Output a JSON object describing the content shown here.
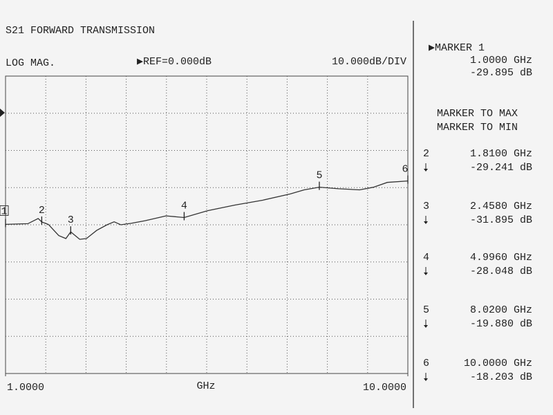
{
  "chart_data": {
    "type": "line",
    "title": "S21 FORWARD TRANSMISSION",
    "format_label": "LOG MAG.",
    "reference_label": "▶REF=0.000dB",
    "scale_label": "10.000dB/DIV",
    "xlabel": "GHz",
    "xlim": [
      1,
      10
    ],
    "xticks": [
      {
        "value": 1,
        "label": "1.0000"
      },
      {
        "value": 10,
        "label": "10.0000"
      }
    ],
    "ylim": [
      -70,
      10
    ],
    "grid": true,
    "x": [
      1.0,
      1.5,
      1.73,
      1.81,
      1.96,
      2.19,
      2.35,
      2.458,
      2.66,
      2.81,
      3.04,
      3.27,
      3.43,
      3.58,
      3.81,
      4.12,
      4.59,
      4.996,
      5.52,
      6.13,
      6.75,
      7.37,
      7.68,
      8.02,
      8.45,
      8.92,
      9.23,
      9.54,
      10.0
    ],
    "series": [
      {
        "color": "#333333",
        "values": [
          -29.895,
          -29.7,
          -28.3,
          -29.241,
          -29.9,
          -32.9,
          -33.7,
          -31.895,
          -33.9,
          -33.7,
          -31.5,
          -30.0,
          -29.2,
          -30.0,
          -29.6,
          -28.9,
          -27.6,
          -28.048,
          -26.2,
          -24.7,
          -23.4,
          -21.7,
          -20.6,
          -19.88,
          -20.3,
          -20.6,
          -19.9,
          -18.6,
          -18.203
        ]
      }
    ],
    "marker_heading": "▶MARKER 1",
    "marker_functions": [
      "MARKER TO MAX",
      "MARKER TO MIN"
    ],
    "markers": [
      {
        "label": "1",
        "x": 1.0,
        "y": -29.895,
        "x_label": "1.0000 GHz",
        "y_label": "-29.895 dB"
      },
      {
        "label": "2",
        "x": 1.81,
        "y": -29.241,
        "x_label": "1.8100 GHz",
        "y_label": "-29.241 dB"
      },
      {
        "label": "3",
        "x": 2.458,
        "y": -31.895,
        "x_label": "2.4580 GHz",
        "y_label": "-31.895 dB"
      },
      {
        "label": "4",
        "x": 4.996,
        "y": -28.048,
        "x_label": "4.9960 GHz",
        "y_label": "-28.048 dB"
      },
      {
        "label": "5",
        "x": 8.02,
        "y": -19.88,
        "x_label": "8.0200 GHz",
        "y_label": "-19.880 dB"
      },
      {
        "label": "6",
        "x": 10.0,
        "y": -18.203,
        "x_label": "10.0000 GHz",
        "y_label": "-18.203 dB"
      }
    ]
  }
}
